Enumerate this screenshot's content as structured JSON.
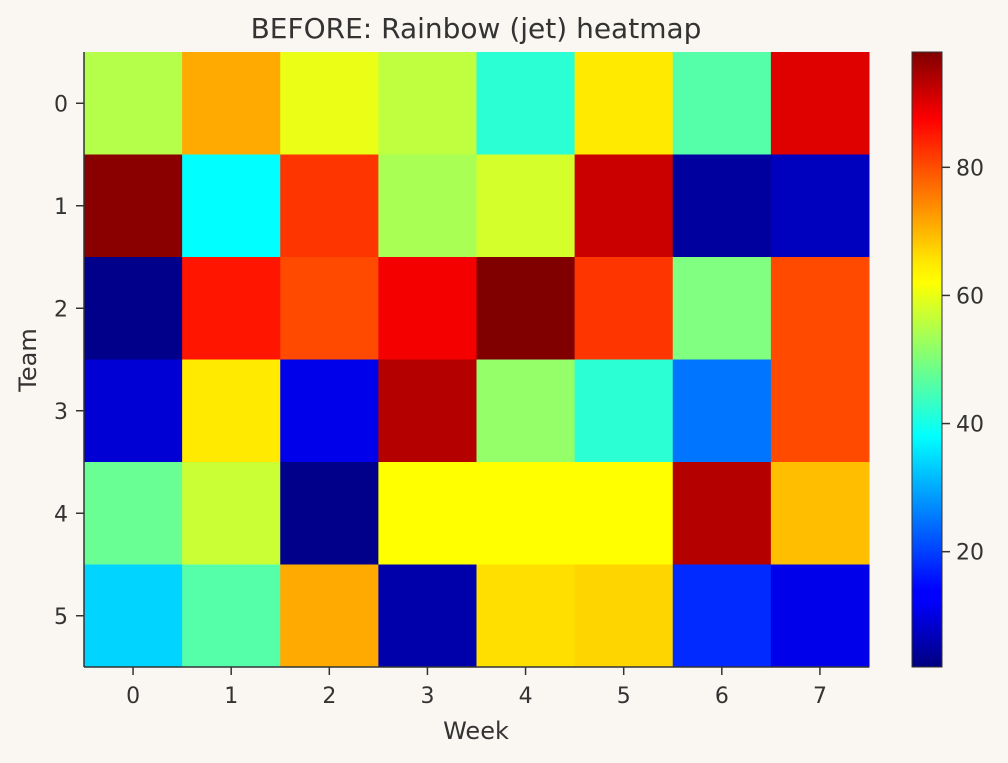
{
  "chart_data": {
    "type": "heatmap",
    "title": "BEFORE: Rainbow (jet) heatmap",
    "xlabel": "Week",
    "ylabel": "Team",
    "x_categories": [
      "0",
      "1",
      "2",
      "3",
      "4",
      "5",
      "6",
      "7"
    ],
    "y_categories": [
      "0",
      "1",
      "2",
      "3",
      "4",
      "5"
    ],
    "values": [
      [
        55,
        70,
        60,
        56,
        42,
        64,
        46,
        89
      ],
      [
        97,
        38,
        81,
        54,
        58,
        91,
        5,
        8
      ],
      [
        3,
        84,
        79,
        87,
        98,
        81,
        50,
        79
      ],
      [
        10,
        64,
        12,
        93,
        52,
        42,
        25,
        79
      ],
      [
        48,
        57,
        3,
        62,
        62,
        62,
        93,
        68
      ],
      [
        34,
        46,
        70,
        6,
        65,
        66,
        18,
        12
      ]
    ],
    "colorbar": {
      "colormap": "jet",
      "vmin": 2,
      "vmax": 98,
      "ticks": [
        20,
        40,
        60,
        80
      ]
    },
    "grid": false
  }
}
